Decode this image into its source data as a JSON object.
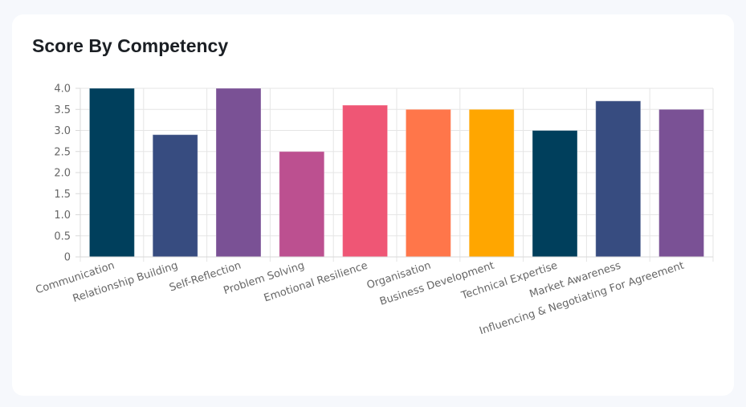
{
  "card": {
    "title": "Score By Competency"
  },
  "chart_data": {
    "type": "bar",
    "title": "Score By Competency",
    "categories": [
      "Communication",
      "Relationship Building",
      "Self-Reflection",
      "Problem Solving",
      "Emotional Resilience",
      "Organisation",
      "Business Development",
      "Technical Expertise",
      "Market Awareness",
      "Influencing & Negotiating For Agreement"
    ],
    "values": [
      4.0,
      2.9,
      4.0,
      2.5,
      3.6,
      3.5,
      3.5,
      3.0,
      3.7,
      3.5
    ],
    "bar_colors": [
      "#003f5c",
      "#374c80",
      "#7a5195",
      "#bc5090",
      "#ef5675",
      "#ff764a",
      "#ffa600",
      "#003f5c",
      "#374c80",
      "#7a5195"
    ],
    "ylim": [
      0,
      4
    ],
    "y_ticks": [
      "0",
      "0.5",
      "1.0",
      "1.5",
      "2.0",
      "2.5",
      "3.0",
      "3.5",
      "4.0"
    ],
    "xlabel": "",
    "ylabel": "",
    "grid": true,
    "legend": "none"
  }
}
